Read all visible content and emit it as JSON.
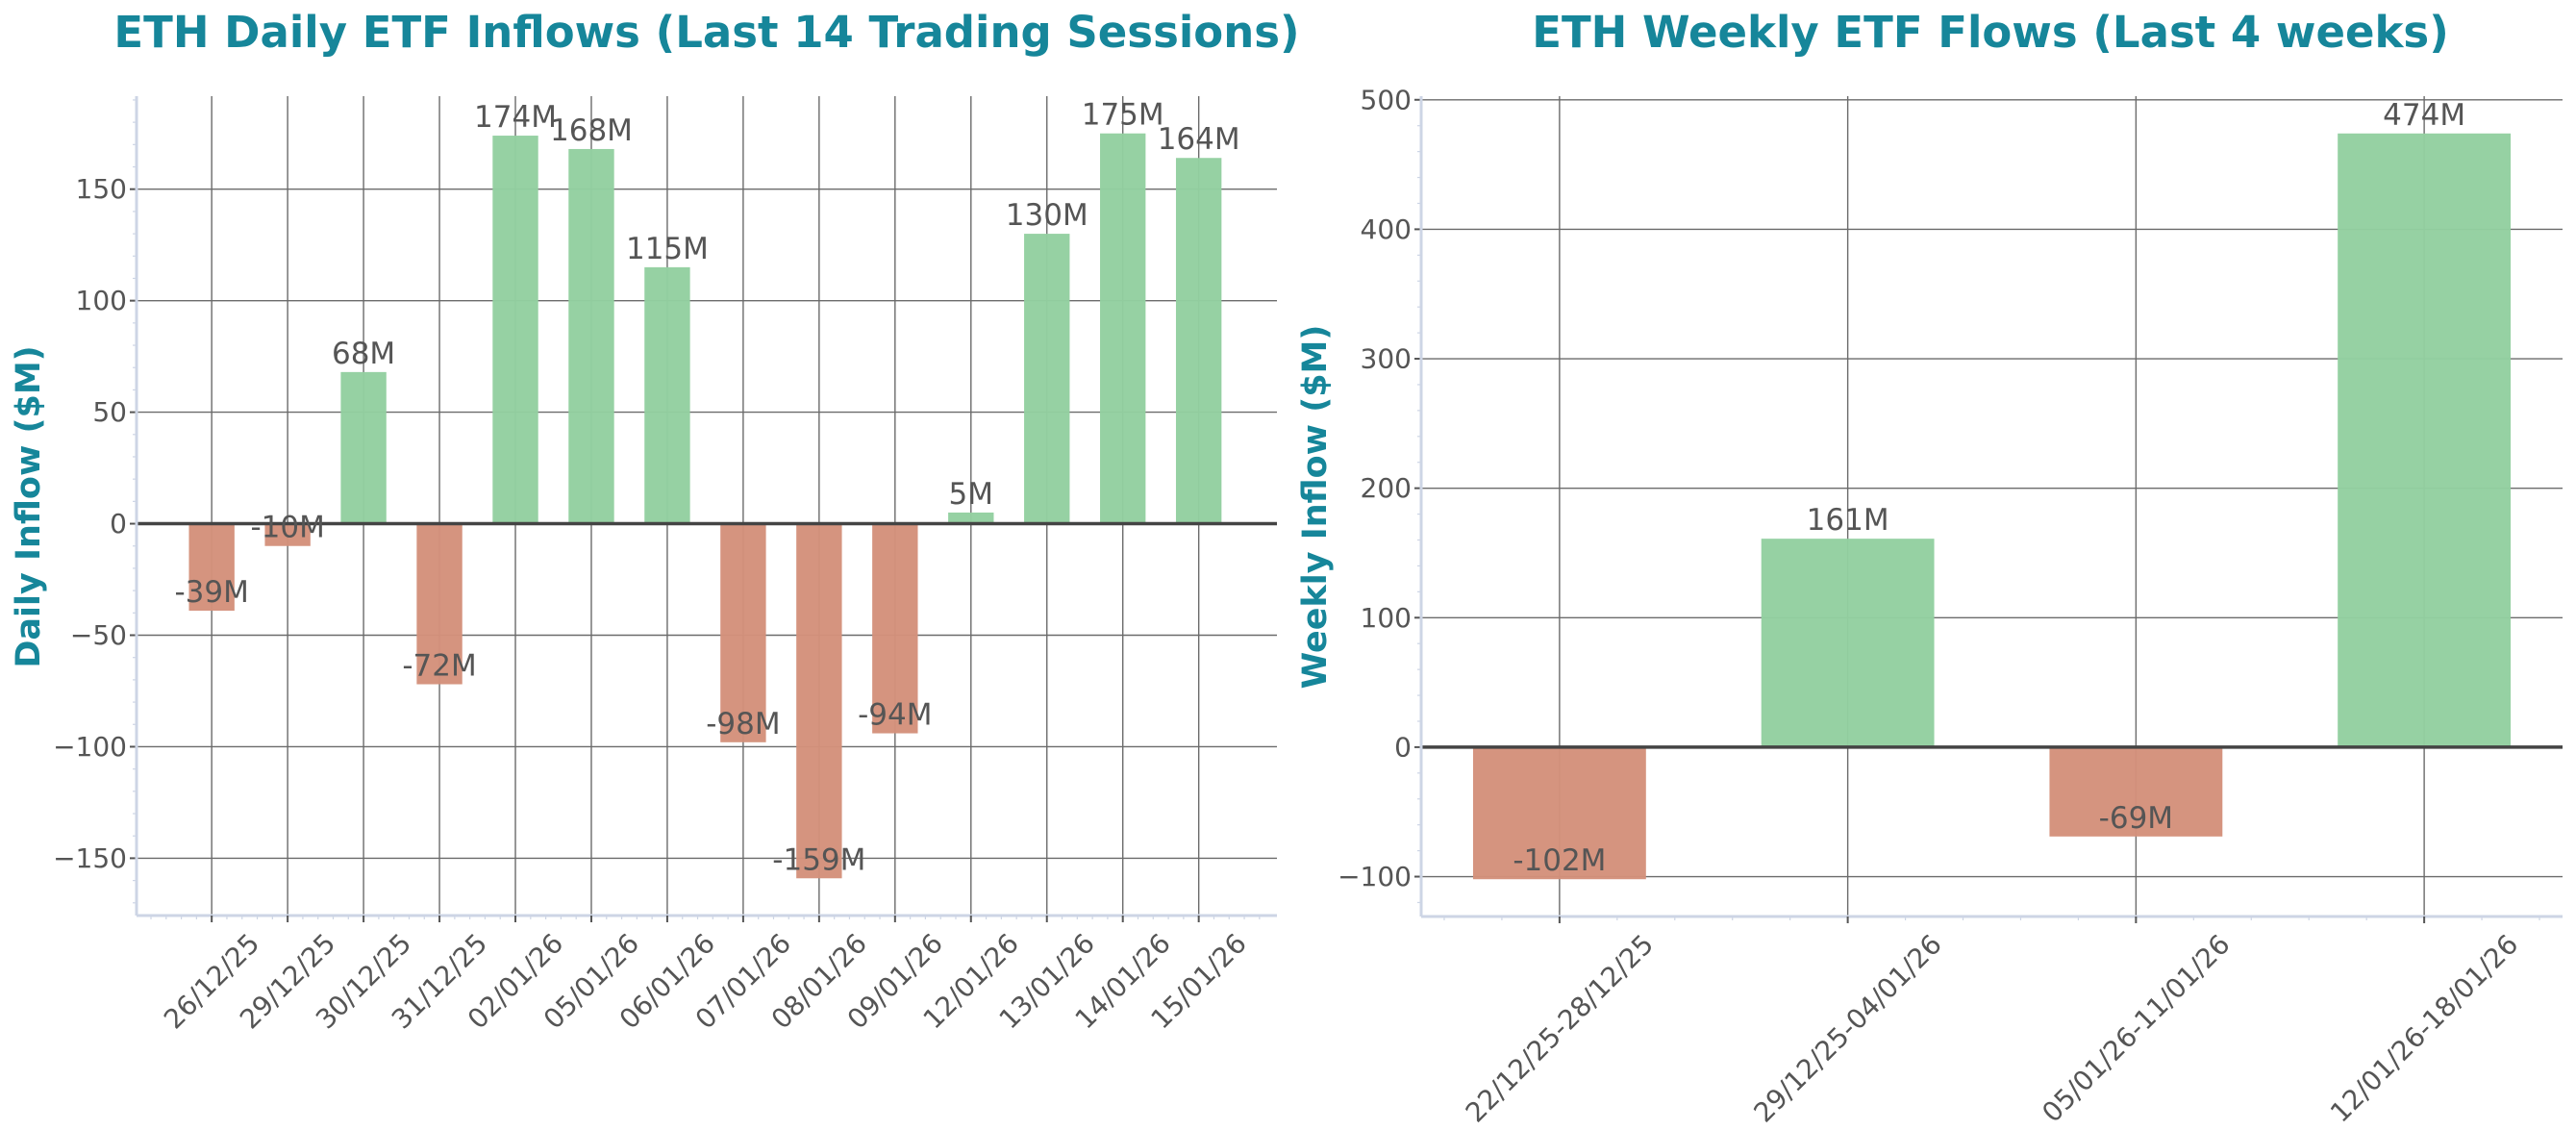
{
  "colors": {
    "title": "#16869a",
    "positive_bar": "#93cfa0",
    "negative_bar": "#d4917b",
    "grid": "#6b6b6b",
    "zero_line": "#444444",
    "spine": "#cdd5e5",
    "text": "#555555"
  },
  "chart_data": [
    {
      "type": "bar",
      "title": "ETH Daily ETF Inflows (Last 14 Trading Sessions)",
      "xlabel": "",
      "ylabel": "Daily Inflow ($M)",
      "categories": [
        "26/12/25",
        "29/12/25",
        "30/12/25",
        "31/12/25",
        "02/01/26",
        "05/01/26",
        "06/01/26",
        "07/01/26",
        "08/01/26",
        "09/01/26",
        "12/01/26",
        "13/01/26",
        "14/01/26",
        "15/01/26"
      ],
      "values": [
        -39,
        -10,
        68,
        -72,
        174,
        168,
        115,
        -98,
        -159,
        -94,
        5,
        130,
        175,
        164
      ],
      "data_labels": [
        "-39M",
        "-10M",
        "68M",
        "-72M",
        "174M",
        "168M",
        "115M",
        "-98M",
        "-159M",
        "-94M",
        "5M",
        "130M",
        "175M",
        "164M"
      ],
      "ylim": [
        -175.7,
        191.7
      ],
      "yticks": [
        -150,
        -100,
        -50,
        0,
        50,
        100,
        150
      ],
      "ytick_labels": [
        "−150",
        "−100",
        "−50",
        "0",
        "50",
        "100",
        "150"
      ],
      "grid": true,
      "zero_line": true,
      "bar_colors": "green for positive, red for negative"
    },
    {
      "type": "bar",
      "title": "ETH Weekly ETF Flows (Last 4 weeks)",
      "xlabel": "",
      "ylabel": "Weekly Inflow ($M)",
      "categories": [
        "22/12/25-28/12/25",
        "29/12/25-04/01/26",
        "05/01/26-11/01/26",
        "12/01/26-18/01/26"
      ],
      "values": [
        -102,
        161,
        -69,
        474
      ],
      "data_labels": [
        "-102M",
        "161M",
        "-69M",
        "474M"
      ],
      "ylim": [
        -130.8,
        502.8
      ],
      "yticks": [
        -100,
        0,
        100,
        200,
        300,
        400,
        500
      ],
      "ytick_labels": [
        "−100",
        "0",
        "100",
        "200",
        "300",
        "400",
        "500"
      ],
      "grid": true,
      "zero_line": true,
      "bar_colors": "green for positive, red for negative"
    }
  ]
}
